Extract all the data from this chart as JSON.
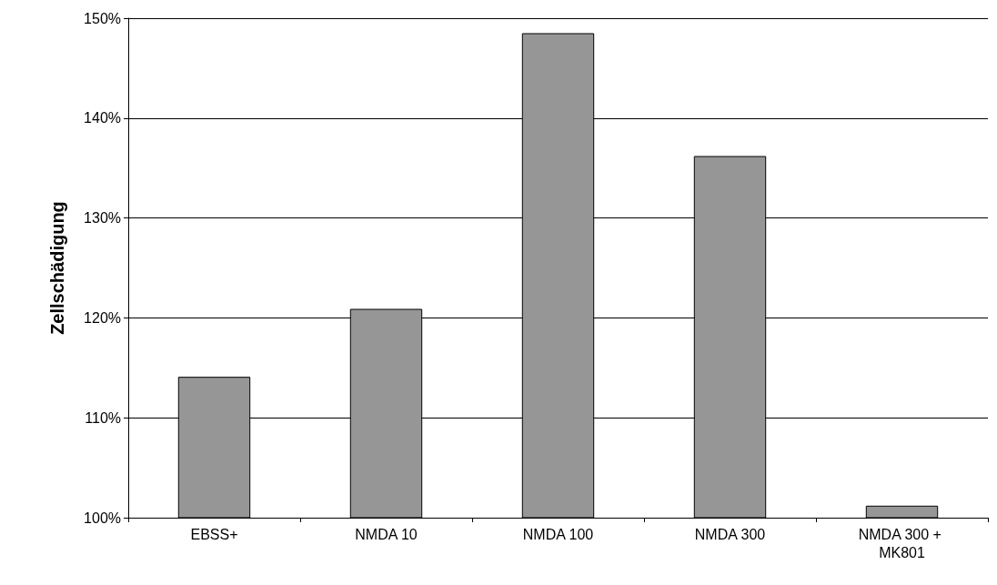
{
  "chart_data": {
    "type": "bar",
    "ylabel": "Zellschädigung",
    "categories": [
      "EBSS+",
      "NMDA 10",
      "NMDA 100",
      "NMDA 300",
      "NMDA 300 + MK801"
    ],
    "values": [
      114.1,
      120.9,
      148.5,
      136.2,
      101.2
    ],
    "color": "#969696",
    "ylim": [
      100,
      150
    ],
    "yticks": [
      {
        "value": 100,
        "label": "100%"
      },
      {
        "value": 110,
        "label": "110%"
      },
      {
        "value": 120,
        "label": "120%"
      },
      {
        "value": 130,
        "label": "130%"
      },
      {
        "value": 140,
        "label": "140%"
      },
      {
        "value": 150,
        "label": "150%"
      }
    ],
    "grid": "y"
  }
}
